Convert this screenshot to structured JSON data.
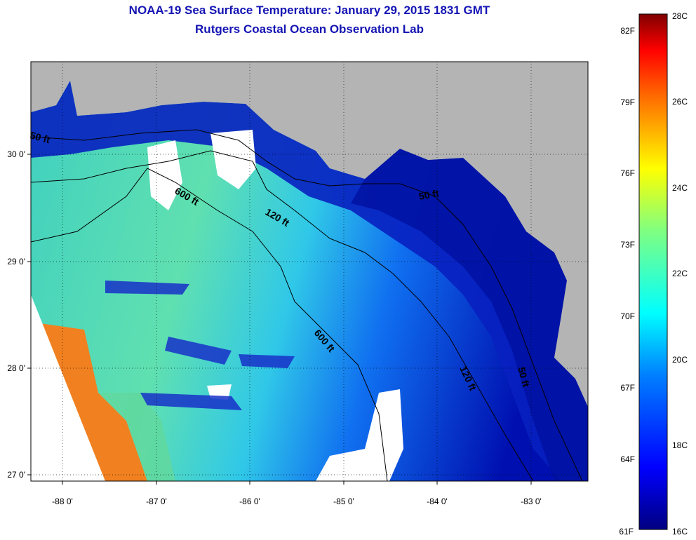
{
  "title": "NOAA-19 Sea Surface Temperature:  January 29, 2015 1831 GMT",
  "subtitle": "Rutgers Coastal Ocean Observation Lab",
  "map": {
    "lon_ticks": [
      "-88 0'",
      "-87 0'",
      "-86 0'",
      "-85 0'",
      "-84 0'",
      "-83 0'"
    ],
    "lat_ticks": [
      "30 0'",
      "29 0'",
      "28 0'",
      "27 0'"
    ],
    "contour_labels": [
      "50 ft",
      "600 ft",
      "120 ft",
      "50 ft",
      "600 ft",
      "120 ft",
      "50 ft"
    ]
  },
  "colorbar": {
    "fahrenheit": [
      "82F",
      "79F",
      "76F",
      "73F",
      "70F",
      "67F",
      "64F",
      "61F"
    ],
    "celsius": [
      "28C",
      "26C",
      "24C",
      "22C",
      "20C",
      "18C",
      "16C"
    ]
  }
}
